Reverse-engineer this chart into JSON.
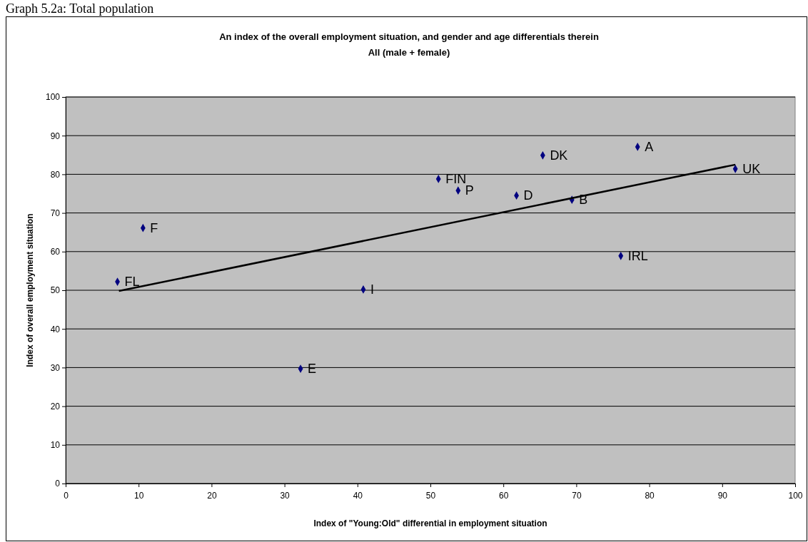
{
  "chart_data": {
    "type": "scatter",
    "title": "An index of the overall employment situation, and gender and age differentials therein",
    "subtitle": "All (male + female)",
    "xlabel": "Index of \"Young:Old\" differential in employment situation",
    "ylabel": "Index of overall employment situation",
    "xlim": [
      0,
      100
    ],
    "xticks": [
      0,
      10,
      20,
      30,
      40,
      50,
      60,
      70,
      80,
      90,
      100
    ],
    "ylim": [
      0,
      100
    ],
    "yticks": [
      0,
      10,
      20,
      30,
      40,
      50,
      60,
      70,
      80,
      90,
      100
    ],
    "grid": "y",
    "marker": "diamond",
    "series": [
      {
        "color": "#000080",
        "x": [
          7.1,
          10.6,
          32.2,
          40.8,
          51.1,
          53.8,
          61.8,
          65.4,
          69.4,
          78.4,
          76.1,
          91.8
        ],
        "values": [
          52.2,
          66.1,
          29.7,
          50.2,
          78.8,
          75.8,
          74.5,
          84.9,
          73.4,
          87.1,
          58.9,
          81.4
        ]
      },
      {
        "type": "line",
        "color": "#000000",
        "marker": "none",
        "line_style": "solid",
        "x": [
          7.3,
          91.8
        ],
        "values": [
          49.8,
          82.5
        ]
      }
    ],
    "annotations": [
      "Graph 5.2a: Total population",
      {
        "text": "FL",
        "x": 7.1,
        "y": 52.2
      },
      {
        "text": "F",
        "x": 10.6,
        "y": 66.1
      },
      {
        "text": "E",
        "x": 32.2,
        "y": 29.7
      },
      {
        "text": "I",
        "x": 40.8,
        "y": 50.2
      },
      {
        "text": "FIN",
        "x": 51.1,
        "y": 78.8
      },
      {
        "text": "P",
        "x": 53.8,
        "y": 75.8
      },
      {
        "text": "D",
        "x": 61.8,
        "y": 74.5
      },
      {
        "text": "DK",
        "x": 65.4,
        "y": 84.9
      },
      {
        "text": "B",
        "x": 69.4,
        "y": 73.4
      },
      {
        "text": "A",
        "x": 78.4,
        "y": 87.1
      },
      {
        "text": "IRL",
        "x": 76.1,
        "y": 58.9
      },
      {
        "text": "UK",
        "x": 91.8,
        "y": 81.4
      }
    ]
  }
}
